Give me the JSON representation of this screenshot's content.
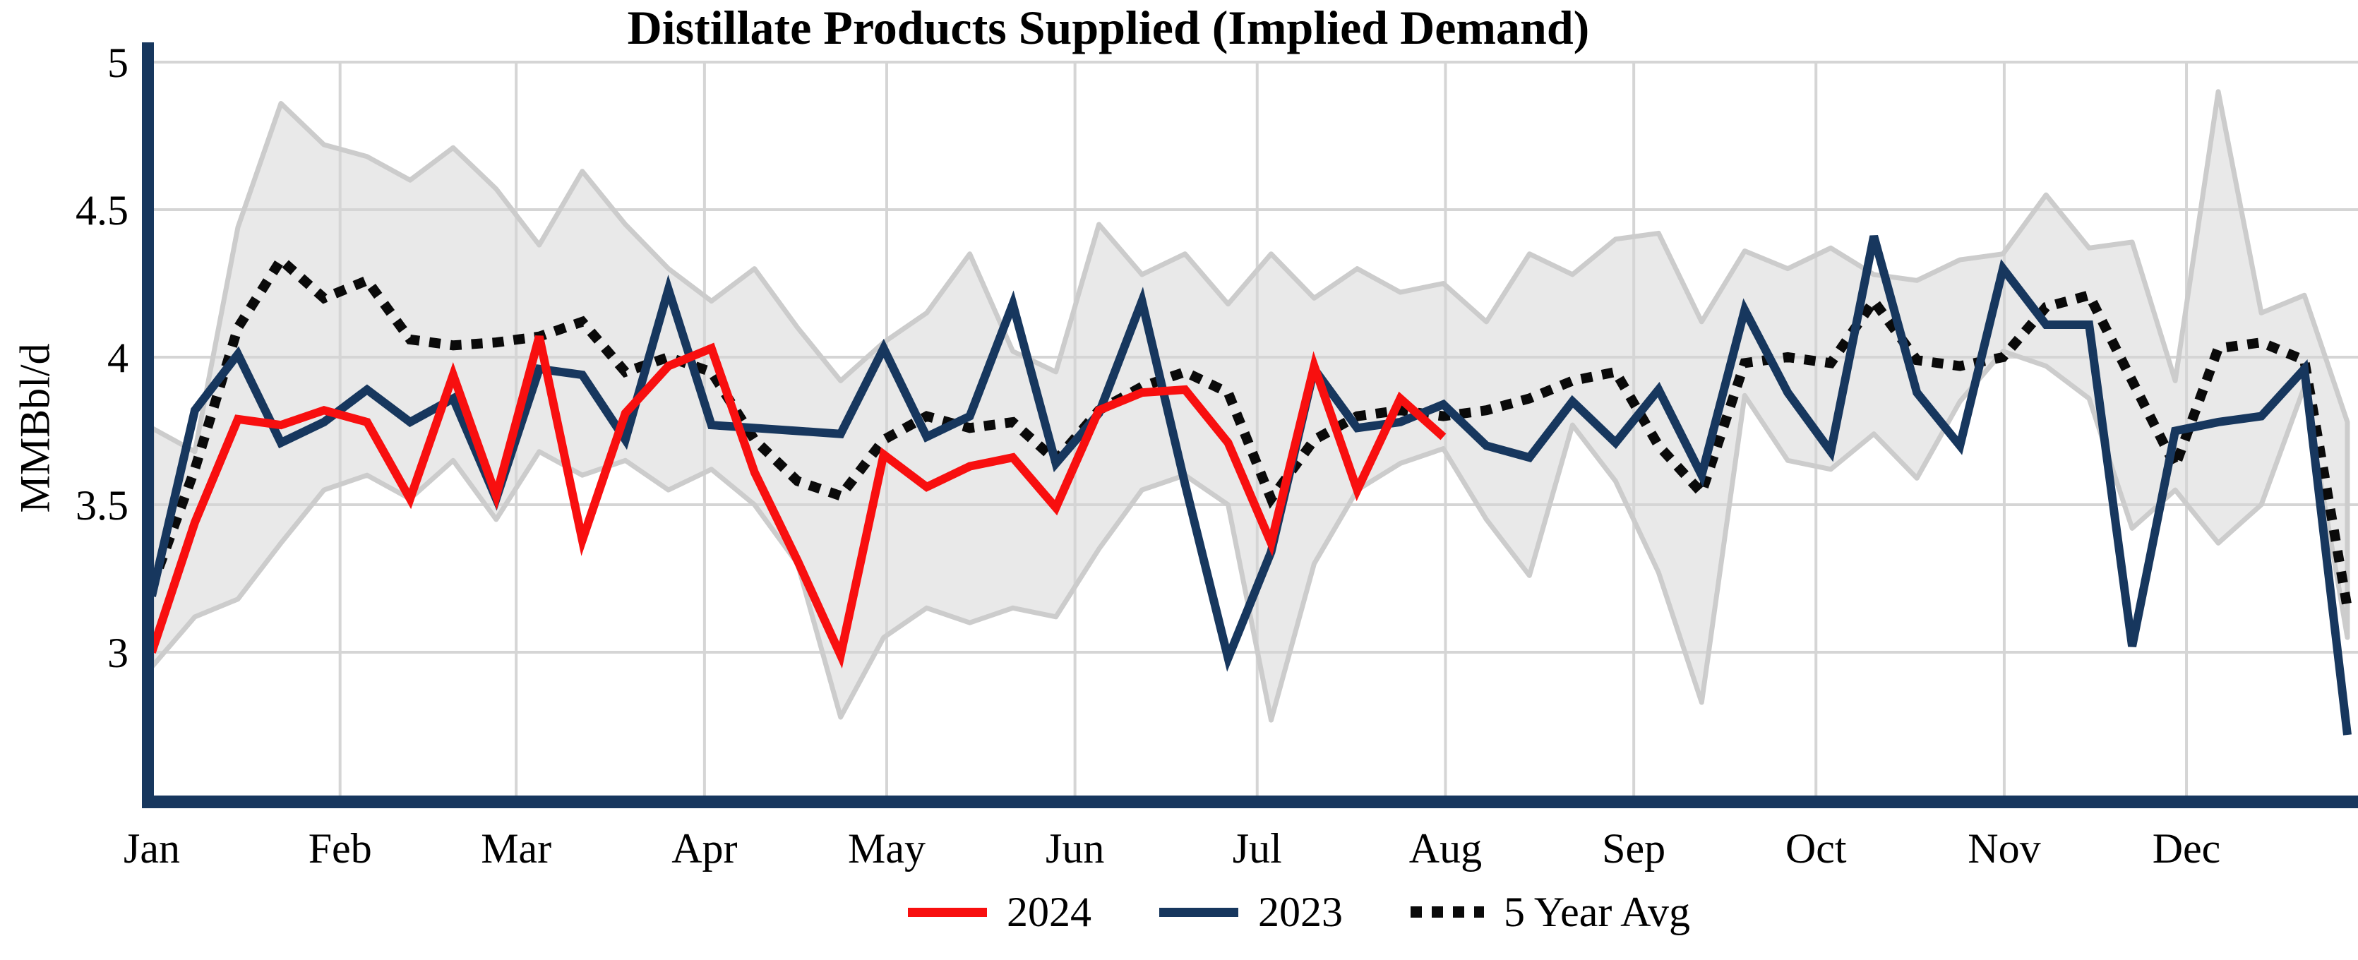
{
  "title": "Distillate Products Supplied (Implied Demand)",
  "y_axis": {
    "label": "MMBbl/d",
    "ticks": [
      "5",
      "4.5",
      "4",
      "3.5",
      "3"
    ],
    "tick_values": [
      5,
      4.5,
      4,
      3.5,
      3
    ],
    "range_min": 2.5,
    "range_max": 5
  },
  "x_axis": {
    "months": [
      "Jan",
      "Feb",
      "Mar",
      "Apr",
      "May",
      "Jun",
      "Jul",
      "Aug",
      "Sep",
      "Oct",
      "Nov",
      "Dec"
    ]
  },
  "legend": [
    {
      "label": "2024",
      "color": "#f80f0f",
      "style": "solid"
    },
    {
      "label": "2023",
      "color": "#17375e",
      "style": "solid"
    },
    {
      "label": "5 Year Avg",
      "color": "#0a0a0a",
      "style": "dashed"
    }
  ],
  "colors": {
    "series_2024": "#f80f0f",
    "series_2023": "#17375e",
    "five_year_avg": "#0a0a0a",
    "band_fill": "#e9e9e9",
    "band_edge": "#cccccc",
    "gridline": "#d5d5d5",
    "axis": "#17375e",
    "text": "#000000",
    "background": "#ffffff"
  },
  "chart_data": {
    "type": "line",
    "title": "Distillate Products Supplied (Implied Demand)",
    "xlabel": "",
    "ylabel": "MMBbl/d",
    "x_unit": "weekly (Jan-Dec)",
    "ylim": [
      2.5,
      5.0
    ],
    "yticks": [
      5,
      4.5,
      4,
      3.5,
      3
    ],
    "grid": true,
    "legend_position": "bottom-center",
    "months": [
      "Jan",
      "Feb",
      "Mar",
      "Apr",
      "May",
      "Jun",
      "Jul",
      "Aug",
      "Sep",
      "Oct",
      "Nov",
      "Dec"
    ],
    "weeks_per_month": [
      4,
      4,
      5,
      4,
      5,
      4,
      4,
      5,
      4,
      4,
      5,
      4
    ],
    "band": {
      "name": "5-year range",
      "upper": [
        3.76,
        3.68,
        4.44,
        4.86,
        4.72,
        4.68,
        4.6,
        4.71,
        4.57,
        4.38,
        4.63,
        4.45,
        4.3,
        4.19,
        4.3,
        4.1,
        3.92,
        4.05,
        4.15,
        4.35,
        4.02,
        3.95,
        4.45,
        4.28,
        4.35,
        4.18,
        4.35,
        4.2,
        4.3,
        4.22,
        4.25,
        4.12,
        4.35,
        4.28,
        4.4,
        4.42,
        4.12,
        4.36,
        4.3,
        4.37,
        4.28,
        4.26,
        4.33,
        4.35,
        4.55,
        4.37,
        4.39,
        3.92,
        4.9,
        4.15,
        4.21,
        3.78
      ],
      "lower": [
        2.95,
        3.12,
        3.18,
        3.37,
        3.55,
        3.6,
        3.52,
        3.65,
        3.45,
        3.68,
        3.6,
        3.65,
        3.55,
        3.62,
        3.5,
        3.3,
        2.78,
        3.05,
        3.15,
        3.1,
        3.15,
        3.12,
        3.35,
        3.55,
        3.6,
        3.5,
        2.77,
        3.3,
        3.55,
        3.64,
        3.69,
        3.45,
        3.26,
        3.77,
        3.58,
        3.27,
        2.83,
        3.87,
        3.65,
        3.62,
        3.74,
        3.59,
        3.85,
        4.02,
        3.97,
        3.86,
        3.42,
        3.55,
        3.37,
        3.5,
        3.9,
        3.05
      ]
    },
    "series": [
      {
        "name": "5 Year Avg",
        "color": "#0a0a0a",
        "style": "dashed",
        "values": [
          3.22,
          3.62,
          4.1,
          4.33,
          4.2,
          4.26,
          4.06,
          4.04,
          4.05,
          4.07,
          4.12,
          3.95,
          4.0,
          3.95,
          3.72,
          3.58,
          3.53,
          3.72,
          3.8,
          3.76,
          3.78,
          3.65,
          3.82,
          3.9,
          3.95,
          3.88,
          3.52,
          3.72,
          3.8,
          3.82,
          3.8,
          3.82,
          3.86,
          3.92,
          3.95,
          3.7,
          3.54,
          3.98,
          4.0,
          3.98,
          4.19,
          3.99,
          3.97,
          4.0,
          4.17,
          4.21,
          3.92,
          3.63,
          4.03,
          4.05,
          3.99,
          3.15
        ]
      },
      {
        "name": "2023",
        "color": "#17375e",
        "style": "solid",
        "values": [
          3.19,
          3.82,
          4.01,
          3.71,
          3.78,
          3.89,
          3.78,
          3.86,
          3.52,
          3.96,
          3.94,
          3.72,
          4.23,
          3.77,
          3.76,
          3.75,
          3.74,
          4.03,
          3.73,
          3.8,
          4.18,
          3.64,
          3.81,
          4.19,
          3.57,
          2.98,
          3.34,
          3.96,
          3.76,
          3.78,
          3.84,
          3.7,
          3.66,
          3.85,
          3.71,
          3.89,
          3.6,
          4.16,
          3.88,
          3.68,
          4.41,
          3.88,
          3.7,
          4.3,
          4.11,
          4.11,
          3.02,
          3.75,
          3.78,
          3.8,
          3.96,
          2.72
        ]
      },
      {
        "name": "2024",
        "color": "#f80f0f",
        "style": "solid",
        "values": [
          3.0,
          3.44,
          3.79,
          3.77,
          3.82,
          3.78,
          3.52,
          3.94,
          3.53,
          4.07,
          3.38,
          3.81,
          3.97,
          4.03,
          3.61,
          3.31,
          2.99,
          3.67,
          3.56,
          3.63,
          3.66,
          3.49,
          3.82,
          3.88,
          3.89,
          3.71,
          3.37,
          3.97,
          3.55,
          3.86,
          3.73
        ]
      }
    ]
  }
}
